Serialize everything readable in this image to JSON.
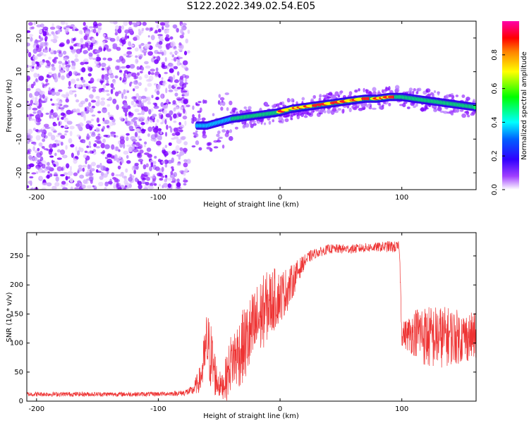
{
  "figure": {
    "title": "S122.2022.349.02.54.E05"
  },
  "chart_data": [
    {
      "type": "heatmap",
      "xlabel": "Height of straight line (km)",
      "ylabel": "Frequency (Hz)",
      "xlim": [
        -208,
        161
      ],
      "ylim": [
        -25,
        25
      ],
      "xticks": [
        -200,
        -100,
        0,
        100
      ],
      "yticks": [
        -20,
        -10,
        0,
        10,
        20
      ],
      "colorbar": {
        "label": "Normalized spectral amplitude",
        "range": [
          0,
          1
        ],
        "ticks": [
          0.0,
          0.2,
          0.4,
          0.6,
          0.8
        ],
        "colormap": [
          "#ffffff",
          "#7a00ff",
          "#0000ff",
          "#00ffff",
          "#00ff00",
          "#ffff00",
          "#ff0000",
          "#ff00aa"
        ]
      },
      "ridge": {
        "x": [
          -70,
          -60,
          -50,
          -40,
          -30,
          -20,
          -10,
          0,
          10,
          20,
          30,
          40,
          50,
          60,
          70,
          80,
          90,
          100,
          110,
          120,
          130,
          140,
          150,
          160
        ],
        "frequency": [
          -6,
          -6,
          -5,
          -4,
          -3.5,
          -3,
          -2.5,
          -2,
          -1,
          -0.5,
          0,
          0.5,
          1,
          1.5,
          2,
          2,
          2.5,
          2.5,
          2,
          1.5,
          1,
          0.5,
          0,
          -0.5
        ]
      },
      "noise_region_x": [
        -208,
        -75
      ],
      "grid": false
    },
    {
      "type": "line",
      "xlabel": "Height of straight line (km)",
      "ylabel": "SNR (10 * v/v)",
      "xlim": [
        -208,
        161
      ],
      "ylim": [
        0,
        290
      ],
      "xticks": [
        -200,
        -100,
        0,
        100
      ],
      "yticks": [
        0,
        50,
        100,
        150,
        200,
        250
      ],
      "color": "#ee3333",
      "grid": false,
      "series": [
        {
          "x": [
            -208,
            -190,
            -170,
            -150,
            -130,
            -110,
            -90,
            -80,
            -72,
            -65,
            -60,
            -56,
            -52,
            -48,
            -44,
            -40,
            -35,
            -30,
            -25,
            -20,
            -15,
            -10,
            -5,
            0,
            5,
            10,
            15,
            20,
            25,
            30,
            35,
            40,
            50,
            60,
            70,
            80,
            90,
            95,
            98,
            100,
            105,
            110,
            115,
            120,
            130,
            140,
            150,
            161
          ],
          "values": [
            12,
            12,
            12,
            12,
            12,
            12,
            13,
            14,
            18,
            40,
            100,
            70,
            35,
            25,
            40,
            70,
            80,
            95,
            110,
            130,
            150,
            165,
            175,
            180,
            190,
            205,
            225,
            240,
            250,
            255,
            258,
            262,
            262,
            262,
            264,
            265,
            266,
            265,
            265,
            115,
            115,
            118,
            120,
            110,
            110,
            112,
            110,
            112
          ],
          "noise_amplitude": [
            4,
            4,
            4,
            4,
            4,
            4,
            4,
            5,
            8,
            25,
            60,
            60,
            30,
            20,
            40,
            50,
            60,
            65,
            70,
            70,
            65,
            60,
            55,
            45,
            40,
            30,
            20,
            12,
            10,
            8,
            8,
            8,
            8,
            8,
            8,
            8,
            10,
            10,
            10,
            20,
            30,
            40,
            50,
            55,
            55,
            50,
            45,
            40
          ]
        }
      ]
    }
  ]
}
